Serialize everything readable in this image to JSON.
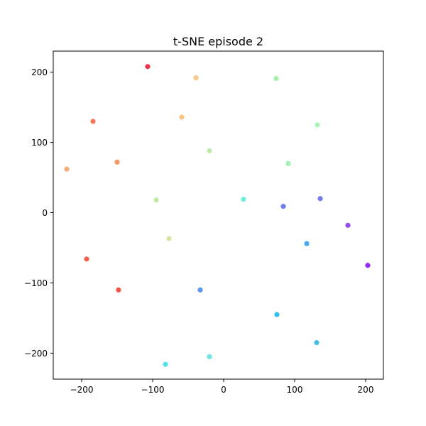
{
  "chart_data": {
    "type": "scatter",
    "title": "t-SNE episode 2",
    "xlabel": "",
    "ylabel": "",
    "xlim": [
      -240,
      225
    ],
    "ylim": [
      -237,
      230
    ],
    "xticks": [
      -200,
      -100,
      0,
      100,
      200
    ],
    "yticks": [
      -200,
      -100,
      0,
      100,
      200
    ],
    "xtick_labels": [
      "−200",
      "−100",
      "0",
      "100",
      "200"
    ],
    "ytick_labels": [
      "−200",
      "−100",
      "0",
      "100",
      "200"
    ],
    "grid": false,
    "legend": false,
    "points": [
      {
        "x": -107,
        "y": 208,
        "color": "#f0202a"
      },
      {
        "x": -39,
        "y": 192,
        "color": "#f6c27a"
      },
      {
        "x": 74,
        "y": 191,
        "color": "#9ded9c"
      },
      {
        "x": -184,
        "y": 130,
        "color": "#f36c44"
      },
      {
        "x": -59,
        "y": 136,
        "color": "#f9be6e"
      },
      {
        "x": 132,
        "y": 125,
        "color": "#a6efb0"
      },
      {
        "x": -20,
        "y": 88,
        "color": "#bde7a0"
      },
      {
        "x": -150,
        "y": 72,
        "color": "#f58b50"
      },
      {
        "x": -221,
        "y": 62,
        "color": "#f5a268"
      },
      {
        "x": 91,
        "y": 70,
        "color": "#96f0ab"
      },
      {
        "x": -95,
        "y": 18,
        "color": "#b9eb99"
      },
      {
        "x": 28,
        "y": 19,
        "color": "#63ecd5"
      },
      {
        "x": 136,
        "y": 20,
        "color": "#6a66ec"
      },
      {
        "x": 84,
        "y": 9,
        "color": "#5c70ed"
      },
      {
        "x": 175,
        "y": -18,
        "color": "#8a3cf0"
      },
      {
        "x": -77,
        "y": -37,
        "color": "#d8e196"
      },
      {
        "x": 117,
        "y": -44,
        "color": "#2fa7ea"
      },
      {
        "x": 203,
        "y": -75,
        "color": "#8b12f0"
      },
      {
        "x": -193,
        "y": -66,
        "color": "#f54e3a"
      },
      {
        "x": -148,
        "y": -110,
        "color": "#f24232"
      },
      {
        "x": -33,
        "y": -110,
        "color": "#4a8bee"
      },
      {
        "x": 75,
        "y": -145,
        "color": "#1db8ec"
      },
      {
        "x": 131,
        "y": -185,
        "color": "#30b7e8"
      },
      {
        "x": -20,
        "y": -205,
        "color": "#5fe3df"
      },
      {
        "x": -82,
        "y": -216,
        "color": "#44dde8"
      }
    ]
  }
}
